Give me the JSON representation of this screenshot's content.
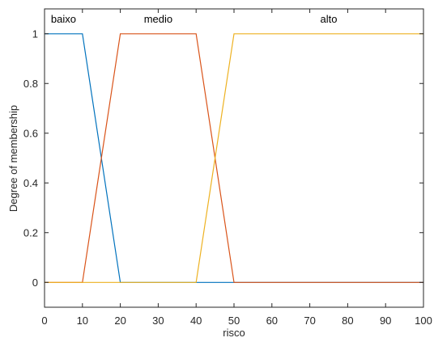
{
  "chart_data": {
    "type": "line",
    "title": "",
    "xlabel": "risco",
    "ylabel": "Degree of membership",
    "xlim": [
      0,
      100
    ],
    "ylim": [
      -0.1,
      1.1
    ],
    "xticks": [
      0,
      10,
      20,
      30,
      40,
      50,
      60,
      70,
      80,
      90,
      100
    ],
    "yticks": [
      0,
      0.2,
      0.4,
      0.6,
      0.8,
      1
    ],
    "ytick_labels": [
      "0",
      "0.2",
      "0.4",
      "0.6",
      "0.8",
      "1"
    ],
    "grid": false,
    "legend": "none",
    "series": [
      {
        "name": "baixo",
        "color": "#0072bd",
        "x": [
          0,
          10,
          20,
          100
        ],
        "y": [
          1,
          1,
          0,
          0
        ],
        "label_x": 5
      },
      {
        "name": "medio",
        "color": "#d95319",
        "x": [
          0,
          10,
          20,
          40,
          50,
          100
        ],
        "y": [
          0,
          0,
          1,
          1,
          0,
          0
        ],
        "label_x": 30
      },
      {
        "name": "alto",
        "color": "#edb120",
        "x": [
          0,
          40,
          50,
          100
        ],
        "y": [
          0,
          0,
          1,
          1
        ],
        "label_x": 75
      }
    ]
  }
}
